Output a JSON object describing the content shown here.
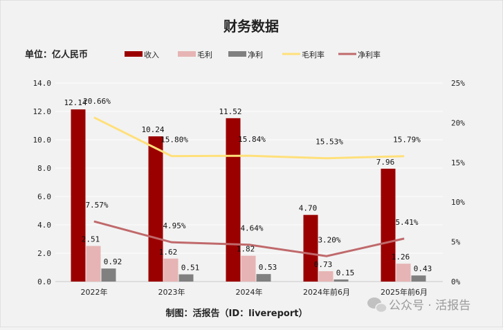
{
  "chart_data": {
    "type": "bar+line",
    "title": "财务数据",
    "unit_label": "单位：亿人民币",
    "source": "制图：活报告（ID：livereport）",
    "watermark": "公众号 · 活报告",
    "categories": [
      "2022年",
      "2023年",
      "2024年",
      "2024年前6月",
      "2025年前6月"
    ],
    "left_axis": {
      "ylim": [
        0,
        14
      ],
      "ticks": [
        "0.0",
        "2.0",
        "4.0",
        "6.0",
        "8.0",
        "10.0",
        "12.0",
        "14.0"
      ]
    },
    "right_axis": {
      "ylim": [
        0,
        25
      ],
      "ticks": [
        "0%",
        "5%",
        "10%",
        "15%",
        "20%",
        "25%"
      ]
    },
    "legend_position": "top",
    "series": [
      {
        "name": "收入",
        "kind": "bar",
        "axis": "left",
        "color": "#9b0000",
        "values": [
          12.14,
          10.24,
          11.52,
          4.7,
          7.96
        ],
        "labels": [
          "12.14",
          "10.24",
          "11.52",
          "4.70",
          "7.96"
        ]
      },
      {
        "name": "毛利",
        "kind": "bar",
        "axis": "left",
        "color": "#e6b4b4",
        "values": [
          2.51,
          1.62,
          1.82,
          0.73,
          1.26
        ],
        "labels": [
          "2.51",
          "1.62",
          "1.82",
          "0.73",
          "1.26"
        ]
      },
      {
        "name": "净利",
        "kind": "bar",
        "axis": "left",
        "color": "#808080",
        "values": [
          0.92,
          0.51,
          0.53,
          0.15,
          0.43
        ],
        "labels": [
          "0.92",
          "0.51",
          "0.53",
          "0.15",
          "0.43"
        ]
      },
      {
        "name": "毛利率",
        "kind": "line",
        "axis": "right",
        "color": "#ffe07a",
        "values": [
          20.66,
          15.8,
          15.84,
          15.53,
          15.79
        ],
        "labels": [
          "20.66%",
          "15.80%",
          "15.84%",
          "15.53%",
          "15.79%"
        ]
      },
      {
        "name": "净利率",
        "kind": "line",
        "axis": "right",
        "color": "#c0696b",
        "values": [
          7.57,
          4.95,
          4.64,
          3.2,
          5.41
        ],
        "labels": [
          "7.57%",
          "4.95%",
          "4.64%",
          "3.20%",
          "5.41%"
        ]
      }
    ]
  }
}
